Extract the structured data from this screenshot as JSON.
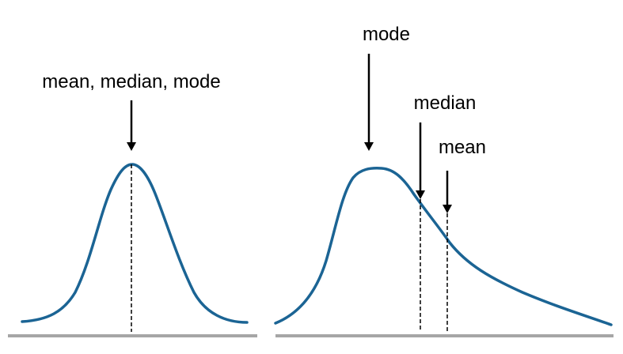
{
  "colors": {
    "curve": "#1b6494",
    "baseline": "#a6a6a6",
    "marker": "#000000"
  },
  "symmetric": {
    "label": "mean, median, mode"
  },
  "skewed": {
    "mode_label": "mode",
    "median_label": "median",
    "mean_label": "mean"
  }
}
